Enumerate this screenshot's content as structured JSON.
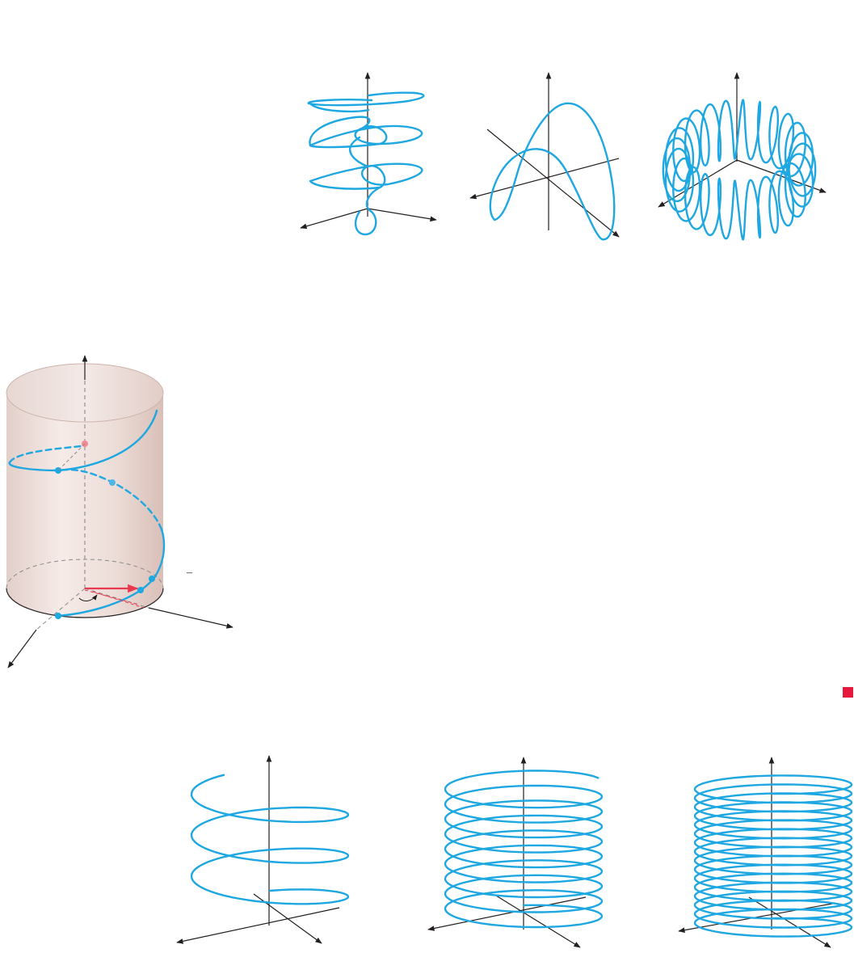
{
  "figure": {
    "top_row": {
      "panels": [
        {
          "name": "curve-a",
          "description_label": ""
        },
        {
          "name": "curve-b",
          "description_label": ""
        },
        {
          "name": "curve-c",
          "description_label": ""
        }
      ]
    },
    "cylinder_figure": {
      "tick_label": "–",
      "point_colors": {
        "blue": "#1ea7e0",
        "red": "#f26d7d"
      }
    },
    "bottom_row": {
      "panels": [
        {
          "name": "helix-few-turns"
        },
        {
          "name": "helix-medium-turns"
        },
        {
          "name": "helix-many-turns"
        }
      ]
    },
    "marker_color": "#e6193c"
  }
}
